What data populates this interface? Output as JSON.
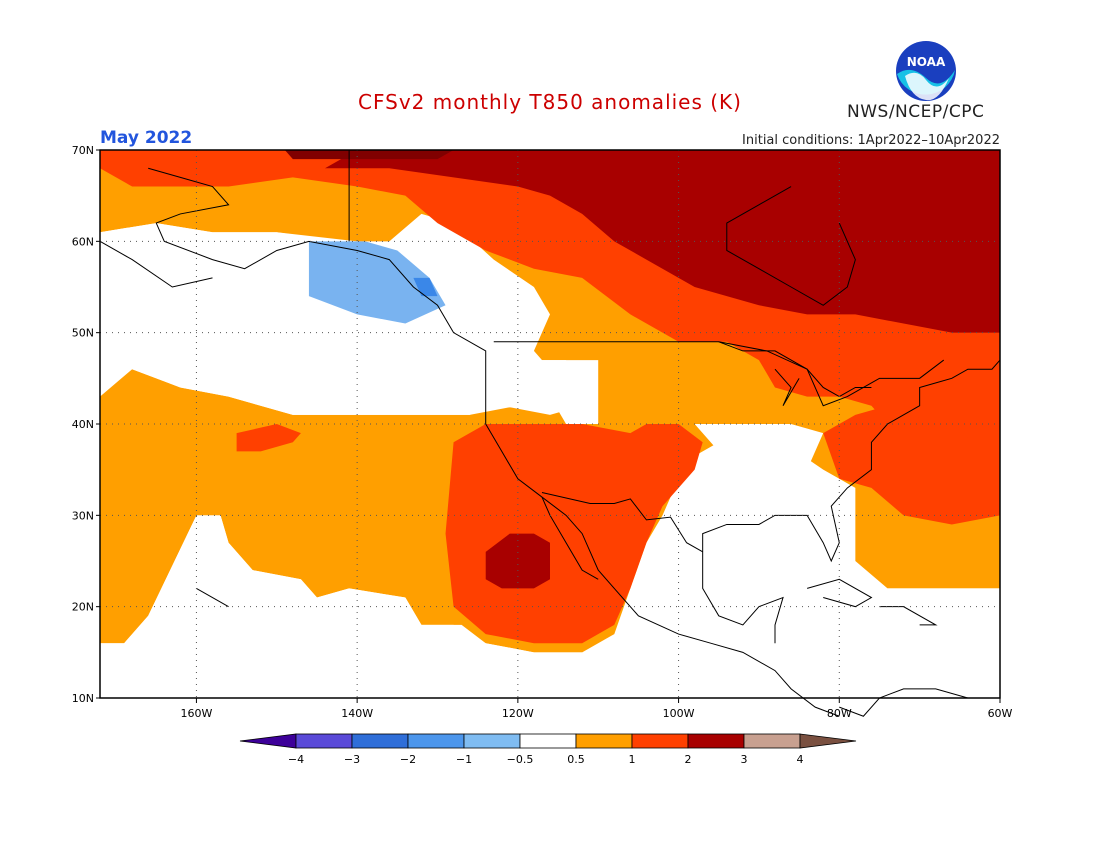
{
  "title": "CFSv2 monthly T850 anomalies (K)",
  "month": "May 2022",
  "initial_conditions": "Initial conditions: 1Apr2022–10Apr2022",
  "agency": "NWS/NCEP/CPC",
  "logo_text": "NOAA",
  "colors": {
    "title": "#cc0000",
    "month": "#2255dd",
    "text": "#222222"
  },
  "map": {
    "lon_range": [
      -172,
      -60
    ],
    "lat_range": [
      10,
      70
    ],
    "lat_labels": [
      "10N",
      "20N",
      "30N",
      "40N",
      "50N",
      "60N",
      "70N"
    ],
    "lon_labels": [
      "160W",
      "140W",
      "120W",
      "100W",
      "80W",
      "60W"
    ],
    "lon_label_values": [
      -160,
      -140,
      -120,
      -100,
      -80,
      -60
    ],
    "lat_label_values": [
      10,
      20,
      30,
      40,
      50,
      60,
      70
    ],
    "grid": true,
    "anomaly_levels": [
      {
        "value": 0.5,
        "color": "#ff9f00"
      },
      {
        "value": 1,
        "color": "#ff4000"
      },
      {
        "value": 2,
        "color": "#a80000"
      },
      {
        "value": 3,
        "color": "#800000"
      }
    ],
    "cold_anomaly": {
      "value": -0.5,
      "color": "#79b3f0",
      "deep_color": "#3a87e8"
    },
    "coastline_color": "#000000"
  },
  "legend": {
    "ticks": [
      "-4",
      "-3",
      "-2",
      "-1",
      "-0.5",
      "0.5",
      "1",
      "2",
      "3",
      "4"
    ],
    "colors": [
      "#3d0099",
      "#5a4ad8",
      "#2f6ed8",
      "#4c96ec",
      "#7fbcf2",
      "#ffffff",
      "#ff9f00",
      "#ff4000",
      "#a80000",
      "#c8a090",
      "#7a5040"
    ]
  }
}
